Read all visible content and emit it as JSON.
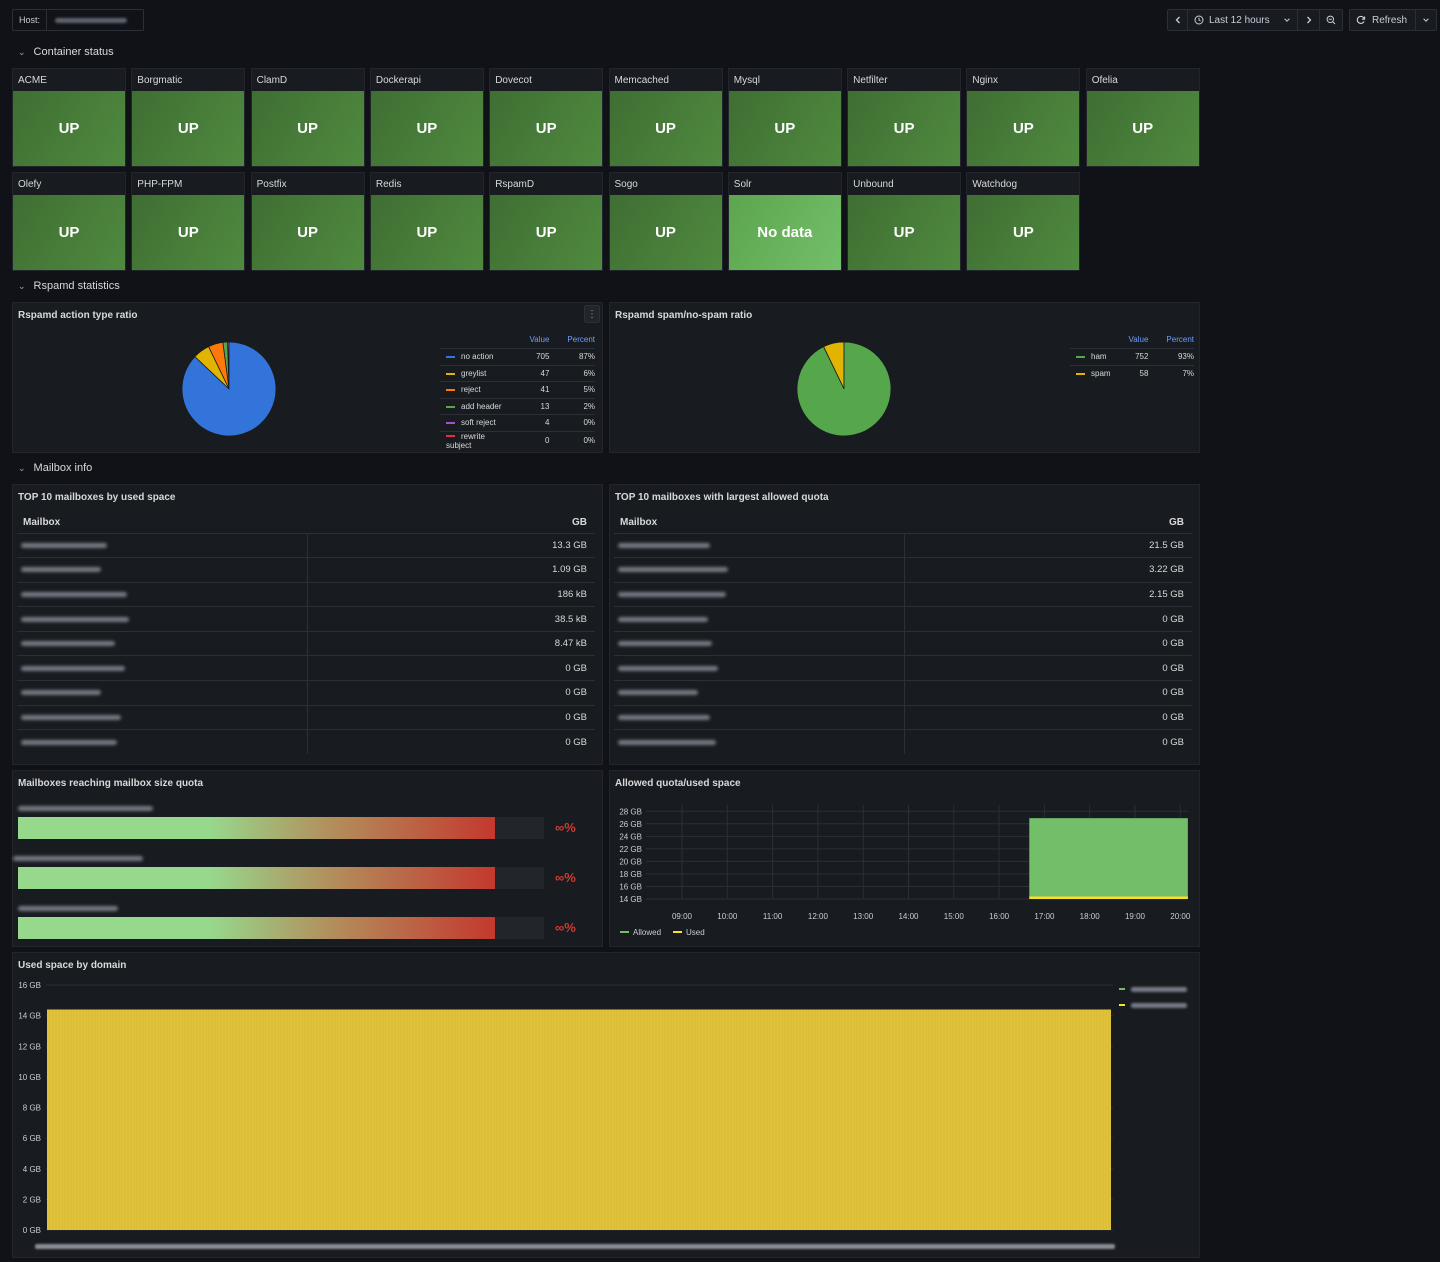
{
  "topbar": {
    "host_label": "Host:",
    "time_range": "Last 12 hours",
    "refresh_label": "Refresh"
  },
  "sections": {
    "container_status": "Container status",
    "rspamd_statistics": "Rspamd statistics",
    "mailbox_info": "Mailbox info"
  },
  "containers": [
    {
      "name": "ACME",
      "status": "UP"
    },
    {
      "name": "Borgmatic",
      "status": "UP"
    },
    {
      "name": "ClamD",
      "status": "UP"
    },
    {
      "name": "Dockerapi",
      "status": "UP"
    },
    {
      "name": "Dovecot",
      "status": "UP"
    },
    {
      "name": "Memcached",
      "status": "UP"
    },
    {
      "name": "Mysql",
      "status": "UP"
    },
    {
      "name": "Netfilter",
      "status": "UP"
    },
    {
      "name": "Nginx",
      "status": "UP"
    },
    {
      "name": "Ofelia",
      "status": "UP"
    },
    {
      "name": "Olefy",
      "status": "UP"
    },
    {
      "name": "PHP-FPM",
      "status": "UP"
    },
    {
      "name": "Postfix",
      "status": "UP"
    },
    {
      "name": "Redis",
      "status": "UP"
    },
    {
      "name": "RspamD",
      "status": "UP"
    },
    {
      "name": "Sogo",
      "status": "UP"
    },
    {
      "name": "Solr",
      "status": "No data"
    },
    {
      "name": "Unbound",
      "status": "UP"
    },
    {
      "name": "Watchdog",
      "status": "UP"
    }
  ],
  "rspamd_action": {
    "title": "Rspamd action type ratio",
    "menu_icon": "⋮",
    "col_value": "Value",
    "col_percent": "Percent",
    "rows": [
      {
        "label": "no action",
        "value": "705",
        "percent": "87%",
        "color": "#3274d9",
        "num": 705
      },
      {
        "label": "greylist",
        "value": "47",
        "percent": "6%",
        "color": "#e0b400",
        "num": 47
      },
      {
        "label": "reject",
        "value": "41",
        "percent": "5%",
        "color": "#ff780a",
        "num": 41
      },
      {
        "label": "add header",
        "value": "13",
        "percent": "2%",
        "color": "#56a64b",
        "num": 13
      },
      {
        "label": "soft reject",
        "value": "4",
        "percent": "0%",
        "color": "#a352cc",
        "num": 4
      },
      {
        "label": "rewrite subject",
        "value": "0",
        "percent": "0%",
        "color": "#e02f44",
        "num": 0
      }
    ]
  },
  "rspamd_spam": {
    "title": "Rspamd spam/no-spam ratio",
    "col_value": "Value",
    "col_percent": "Percent",
    "rows": [
      {
        "label": "ham",
        "value": "752",
        "percent": "93%",
        "color": "#56a64b",
        "num": 752
      },
      {
        "label": "spam",
        "value": "58",
        "percent": "7%",
        "color": "#e0b400",
        "num": 58
      }
    ]
  },
  "top_used": {
    "title": "TOP 10 mailboxes by used space",
    "col_mailbox": "Mailbox",
    "col_gb": "GB",
    "values": [
      "13.3 GB",
      "1.09 GB",
      "186 kB",
      "38.5 kB",
      "8.47 kB",
      "0 GB",
      "0 GB",
      "0 GB",
      "0 GB"
    ]
  },
  "top_quota": {
    "title": "TOP 10 mailboxes with largest allowed quota",
    "col_mailbox": "Mailbox",
    "col_gb": "GB",
    "values": [
      "21.5 GB",
      "3.22 GB",
      "2.15 GB",
      "0 GB",
      "0 GB",
      "0 GB",
      "0 GB",
      "0 GB",
      "0 GB"
    ]
  },
  "quota_reach": {
    "title": "Mailboxes reaching mailbox size quota",
    "bars": [
      {
        "text": "∞%",
        "fill": 0.906
      },
      {
        "text": "∞%",
        "fill": 0.906
      },
      {
        "text": "∞%",
        "fill": 0.906
      }
    ]
  },
  "chart_data": [
    {
      "type": "area",
      "title": "Allowed quota/used space",
      "x_ticks": [
        "09:00",
        "10:00",
        "11:00",
        "12:00",
        "13:00",
        "14:00",
        "15:00",
        "16:00",
        "17:00",
        "18:00",
        "19:00",
        "20:00"
      ],
      "y_ticks": [
        "14 GB",
        "16 GB",
        "18 GB",
        "20 GB",
        "22 GB",
        "24 GB",
        "26 GB",
        "28 GB"
      ],
      "ylim": [
        14,
        29
      ],
      "series": [
        {
          "name": "Allowed",
          "color": "#73bf69",
          "start": "16:40",
          "end": "20:10",
          "value": 26.9
        },
        {
          "name": "Used",
          "color": "#fade2a",
          "start": "16:40",
          "end": "20:10",
          "value": 14.4
        }
      ],
      "legend": "bottom-left",
      "grid": true
    },
    {
      "type": "bar",
      "title": "Used space by domain",
      "y_ticks": [
        "0 GB",
        "2 GB",
        "4 GB",
        "6 GB",
        "8 GB",
        "10 GB",
        "12 GB",
        "14 GB",
        "16 GB"
      ],
      "ylim": [
        0,
        16
      ],
      "value": 14.4,
      "color": "#e0c33a"
    }
  ]
}
